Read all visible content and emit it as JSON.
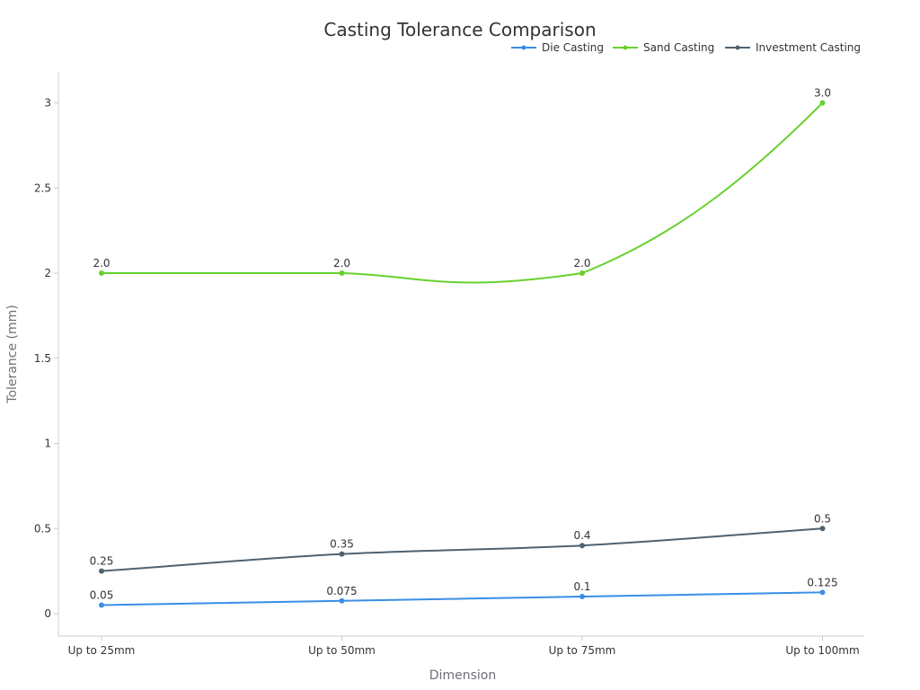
{
  "chart_data": {
    "type": "line",
    "title": "Casting Tolerance Comparison",
    "xlabel": "Dimension",
    "ylabel": "Tolerance (mm)",
    "categories": [
      "Up to 25mm",
      "Up to 50mm",
      "Up to 75mm",
      "Up to 100mm"
    ],
    "series": [
      {
        "name": "Die Casting",
        "color": "#3a8ee6",
        "values": [
          0.05,
          0.075,
          0.1,
          0.125
        ],
        "labels": [
          "0.05",
          "0.075",
          "0.1",
          "0.125"
        ]
      },
      {
        "name": "Sand Casting",
        "color": "#67d12e",
        "values": [
          2.0,
          2.0,
          2.0,
          3.0
        ],
        "labels": [
          "2.0",
          "2.0",
          "2.0",
          "3.0"
        ]
      },
      {
        "name": "Investment Casting",
        "color": "#4f6270",
        "values": [
          0.25,
          0.35,
          0.4,
          0.5
        ],
        "labels": [
          "0.25",
          "0.35",
          "0.4",
          "0.5"
        ]
      }
    ],
    "ylim": [
      0,
      3
    ],
    "yticks": [
      0,
      0.5,
      1,
      1.5,
      2,
      2.5,
      3
    ],
    "ytick_labels": [
      "0",
      "0.5",
      "1",
      "1.5",
      "2",
      "2.5",
      "3"
    ],
    "grid": false,
    "legend_position": "top-right",
    "smooth": true
  }
}
